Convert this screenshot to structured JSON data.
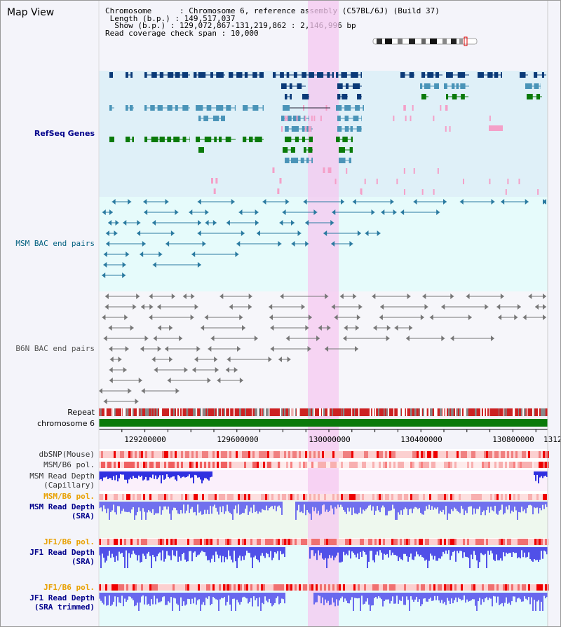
{
  "title": "Map View",
  "info": {
    "chromosome_label": "Chromosome",
    "chromosome_value": "Chromosome 6, reference assembly (C57BL/6J) (Build 37)",
    "length_label": "Length (b.p.)",
    "length_value": "149,517,037",
    "show_label": "Show (b.p.)",
    "show_value": "129,072,867-131,219,862 : 2,146,996 bp",
    "coverage_label": "Read coverage check span",
    "coverage_value": "10,000"
  },
  "tracks": {
    "refseq": "RefSeq Genes",
    "msm_bac": "MSM BAC end pairs",
    "b6n_bac": "B6N BAC end pairs",
    "repeat": "Repeat",
    "chromosome": "chromosome 6",
    "dbsnp": "dbSNP(Mouse)",
    "msm_b6_pol_1": "MSM/B6 pol.",
    "msm_read_depth_cap_1": "MSM Read Depth",
    "msm_read_depth_cap_2": "(Capillary)",
    "msm_b6_pol_2": "MSM/B6 pol.",
    "msm_read_depth_sra_1": "MSM Read Depth",
    "msm_read_depth_sra_2": "(SRA)",
    "jf1_b6_pol_1": "JF1/B6 pol.",
    "jf1_read_depth_sra_1": "JF1 Read Depth",
    "jf1_read_depth_sra_2": "(SRA)",
    "jf1_b6_pol_2": "JF1/B6 pol.",
    "jf1_read_depth_trim_1": "JF1 Read Depth",
    "jf1_read_depth_trim_2": "(SRA trimmed)"
  },
  "axis": {
    "ticks": [
      "129200000",
      "129600000",
      "130000000",
      "130400000",
      "130800000",
      "1312"
    ]
  },
  "colors": {
    "refseq_bg": "#dff0f8",
    "msm_bg": "#e6fbfb",
    "b6n_bg": "#f6f6fa",
    "highlight": "#f6c8f0",
    "navy": "#0a3a78",
    "steel": "#4a94b8",
    "green": "#0a7a0a",
    "pink": "#f4a0c8",
    "label_blue": "#00008b",
    "label_teal": "#005f7f",
    "label_orange": "#e8a000"
  }
}
